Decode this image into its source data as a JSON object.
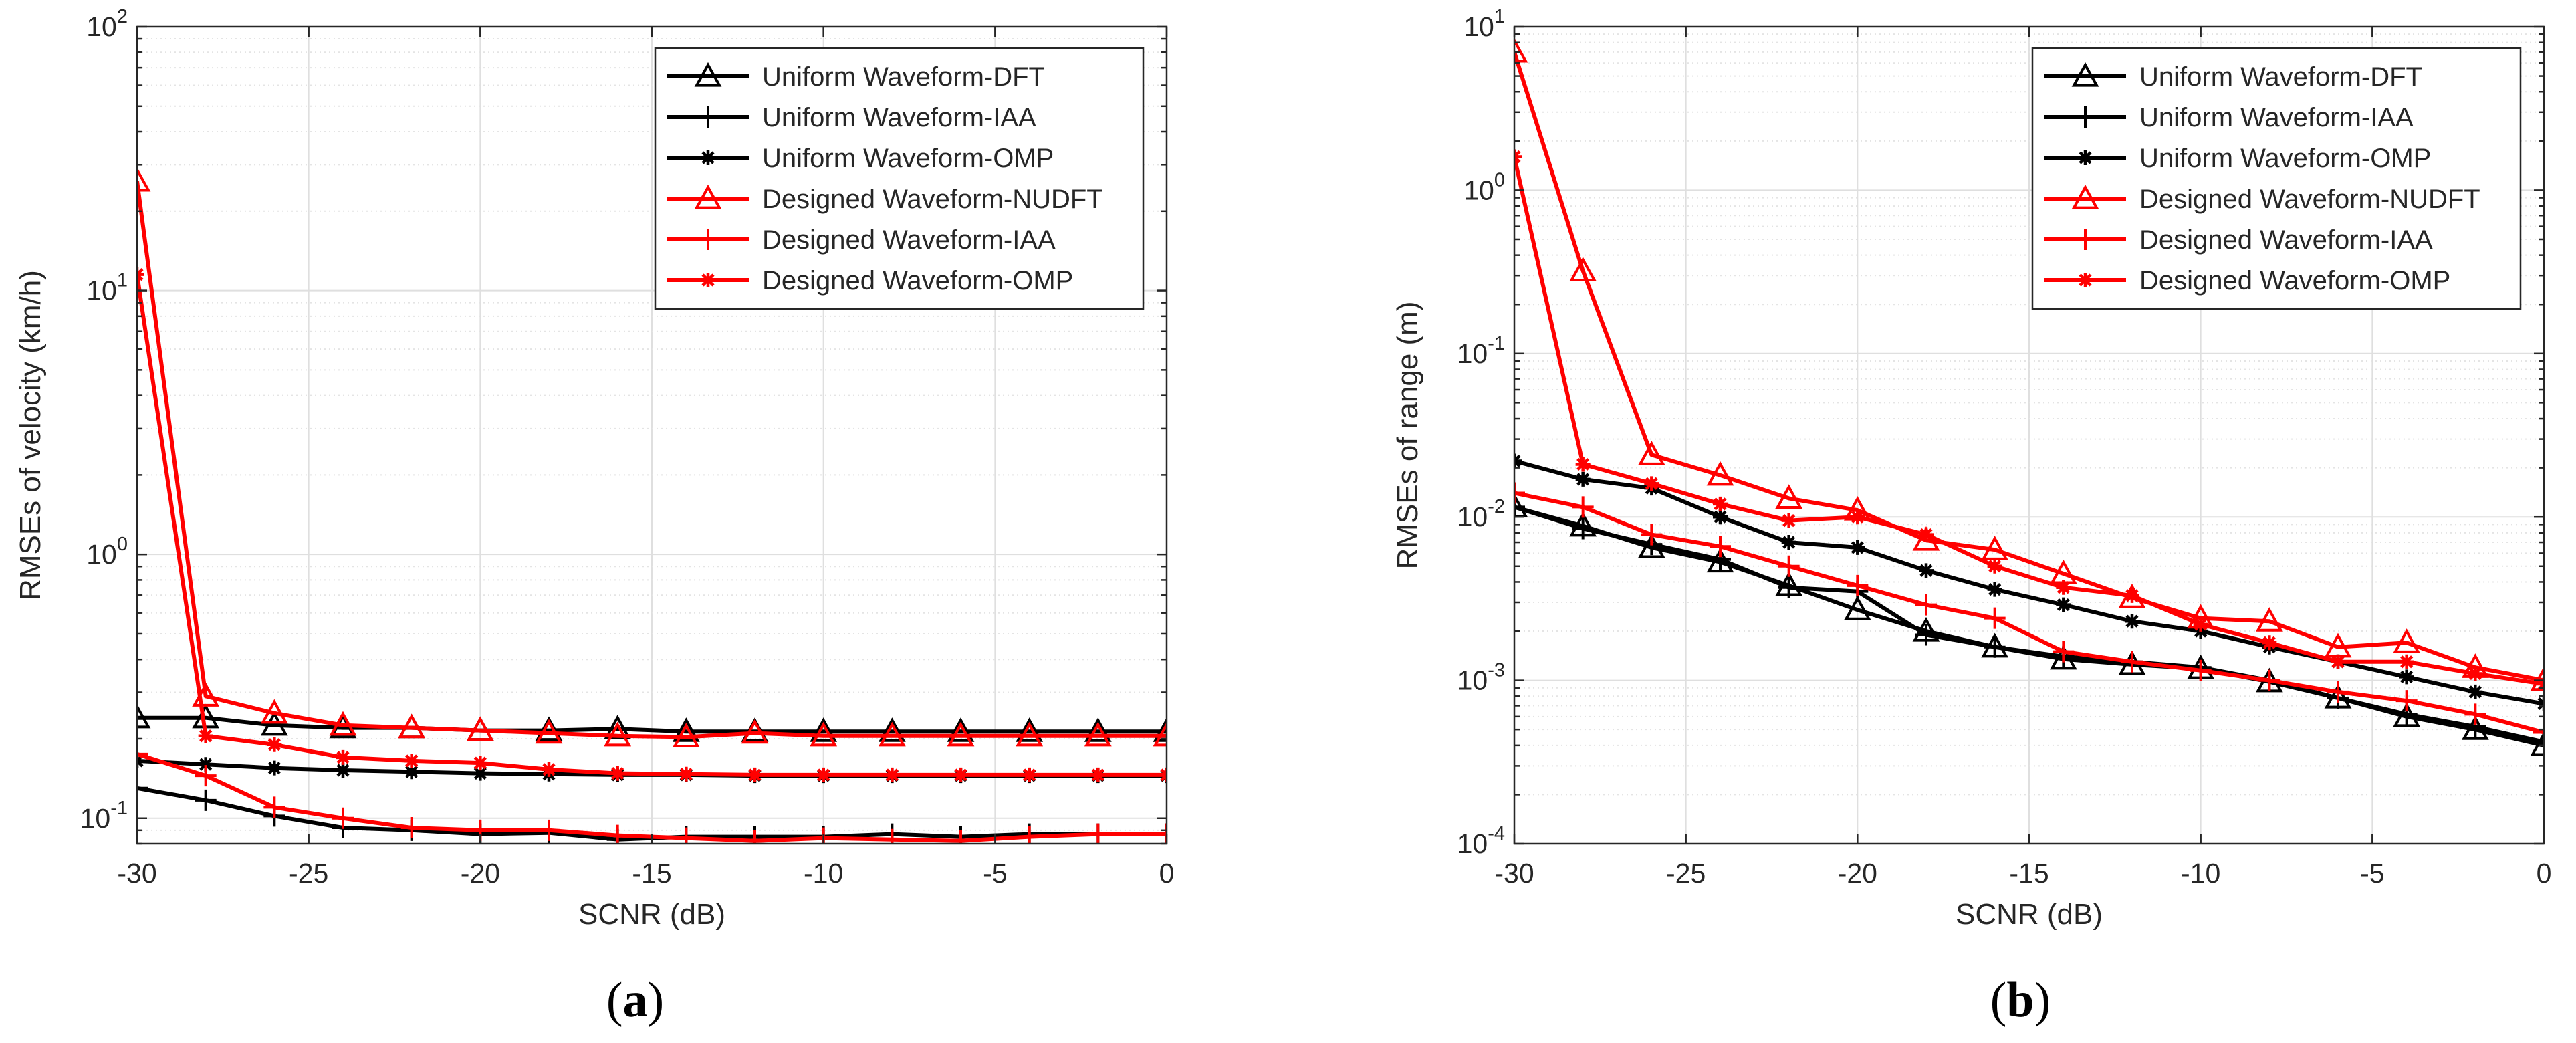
{
  "chart_data": [
    {
      "type": "line",
      "yscale": "log",
      "caption": "(a)",
      "xlabel": "SCNR (dB)",
      "ylabel": "RMSEs of velocity (km/h)",
      "xlim": [
        -30,
        0
      ],
      "ylim": [
        0.08,
        100
      ],
      "xticks": [
        -30,
        -25,
        -20,
        -15,
        -10,
        -5,
        0
      ],
      "xtick_labels": [
        "-30",
        "-25",
        "-20",
        "-15",
        "-10",
        "-5",
        "0"
      ],
      "yticks": [
        {
          "v": 0.1,
          "mant": "10",
          "exp": "-1"
        },
        {
          "v": 1,
          "mant": "10",
          "exp": "0"
        },
        {
          "v": 10,
          "mant": "10",
          "exp": "1"
        },
        {
          "v": 100,
          "mant": "10",
          "exp": "2"
        }
      ],
      "grid": true,
      "legend_position": "top-right",
      "x": [
        -30,
        -28,
        -26,
        -24,
        -22,
        -20,
        -18,
        -16,
        -14,
        -12,
        -10,
        -8,
        -6,
        -4,
        -2,
        0
      ],
      "series": [
        {
          "name": "Uniform Waveform-DFT",
          "color": "#000000",
          "marker": "triangle",
          "values": [
            0.24,
            0.24,
            0.225,
            0.22,
            0.22,
            0.215,
            0.215,
            0.218,
            0.213,
            0.213,
            0.213,
            0.213,
            0.213,
            0.213,
            0.213,
            0.213
          ]
        },
        {
          "name": "Uniform Waveform-IAA",
          "color": "#000000",
          "marker": "plus",
          "values": [
            0.13,
            0.117,
            0.102,
            0.092,
            0.09,
            0.087,
            0.088,
            0.083,
            0.085,
            0.085,
            0.085,
            0.087,
            0.085,
            0.087,
            0.087,
            0.087
          ]
        },
        {
          "name": "Uniform Waveform-OMP",
          "color": "#000000",
          "marker": "star",
          "values": [
            0.165,
            0.16,
            0.155,
            0.152,
            0.15,
            0.148,
            0.147,
            0.146,
            0.146,
            0.145,
            0.145,
            0.145,
            0.145,
            0.145,
            0.145,
            0.145
          ]
        },
        {
          "name": "Designed Waveform-NUDFT",
          "color": "#ff0000",
          "marker": "triangle",
          "values": [
            26,
            0.29,
            0.25,
            0.225,
            0.22,
            0.215,
            0.21,
            0.205,
            0.203,
            0.21,
            0.205,
            0.205,
            0.205,
            0.205,
            0.205,
            0.205
          ]
        },
        {
          "name": "Designed Waveform-IAA",
          "color": "#ff0000",
          "marker": "plus",
          "values": [
            0.175,
            0.145,
            0.11,
            0.1,
            0.092,
            0.09,
            0.09,
            0.086,
            0.084,
            0.082,
            0.084,
            0.083,
            0.082,
            0.085,
            0.087,
            0.087
          ]
        },
        {
          "name": "Designed Waveform-OMP",
          "color": "#ff0000",
          "marker": "star",
          "values": [
            11.5,
            0.205,
            0.19,
            0.17,
            0.165,
            0.162,
            0.153,
            0.148,
            0.147,
            0.146,
            0.146,
            0.146,
            0.146,
            0.146,
            0.146,
            0.146
          ]
        }
      ]
    },
    {
      "type": "line",
      "yscale": "log",
      "caption": "(b)",
      "xlabel": "SCNR (dB)",
      "ylabel": "RMSEs of range (m)",
      "xlim": [
        -30,
        0
      ],
      "ylim": [
        0.0001,
        10
      ],
      "xticks": [
        -30,
        -25,
        -20,
        -15,
        -10,
        -5,
        0
      ],
      "xtick_labels": [
        "-30",
        "-25",
        "-20",
        "-15",
        "-10",
        "-5",
        "0"
      ],
      "yticks": [
        {
          "v": 0.0001,
          "mant": "10",
          "exp": "-4"
        },
        {
          "v": 0.001,
          "mant": "10",
          "exp": "-3"
        },
        {
          "v": 0.01,
          "mant": "10",
          "exp": "-2"
        },
        {
          "v": 0.1,
          "mant": "10",
          "exp": "-1"
        },
        {
          "v": 1,
          "mant": "10",
          "exp": "0"
        },
        {
          "v": 10,
          "mant": "10",
          "exp": "1"
        }
      ],
      "grid": true,
      "legend_position": "top-right",
      "x": [
        -30,
        -28,
        -26,
        -24,
        -22,
        -20,
        -18,
        -16,
        -14,
        -12,
        -10,
        -8,
        -6,
        -4,
        -2,
        0
      ],
      "series": [
        {
          "name": "Uniform Waveform-DFT",
          "color": "#000000",
          "marker": "triangle",
          "values": [
            0.0115,
            0.0088,
            0.0065,
            0.0053,
            0.0038,
            0.0027,
            0.002,
            0.0016,
            0.00135,
            0.00125,
            0.00118,
            0.00098,
            0.00078,
            0.0006,
            0.0005,
            0.0004
          ]
        },
        {
          "name": "Uniform Waveform-IAA",
          "color": "#000000",
          "marker": "plus",
          "values": [
            0.0115,
            0.0085,
            0.0068,
            0.0055,
            0.0037,
            0.0035,
            0.0019,
            0.0016,
            0.0014,
            0.0013,
            0.0012,
            0.001,
            0.00078,
            0.00062,
            0.00052,
            0.00042
          ]
        },
        {
          "name": "Uniform Waveform-OMP",
          "color": "#000000",
          "marker": "star",
          "values": [
            0.022,
            0.017,
            0.015,
            0.01,
            0.007,
            0.0065,
            0.0047,
            0.0036,
            0.0029,
            0.0023,
            0.002,
            0.0016,
            0.0013,
            0.00105,
            0.00085,
            0.00072
          ]
        },
        {
          "name": "Designed Waveform-NUDFT",
          "color": "#ff0000",
          "marker": "triangle",
          "values": [
            7,
            0.32,
            0.024,
            0.018,
            0.013,
            0.011,
            0.0072,
            0.0063,
            0.0045,
            0.0032,
            0.0024,
            0.0023,
            0.0016,
            0.0017,
            0.0012,
            0.001
          ]
        },
        {
          "name": "Designed Waveform-IAA",
          "color": "#ff0000",
          "marker": "plus",
          "values": [
            0.014,
            0.0115,
            0.0078,
            0.0066,
            0.005,
            0.0038,
            0.0029,
            0.0024,
            0.0015,
            0.0013,
            0.00115,
            0.001,
            0.00085,
            0.00075,
            0.00062,
            0.00048
          ]
        },
        {
          "name": "Designed Waveform-OMP",
          "color": "#ff0000",
          "marker": "star",
          "values": [
            1.6,
            0.021,
            0.016,
            0.012,
            0.0095,
            0.01,
            0.0078,
            0.005,
            0.0037,
            0.0033,
            0.0022,
            0.0017,
            0.0013,
            0.0013,
            0.0011,
            0.00095
          ]
        }
      ]
    }
  ]
}
